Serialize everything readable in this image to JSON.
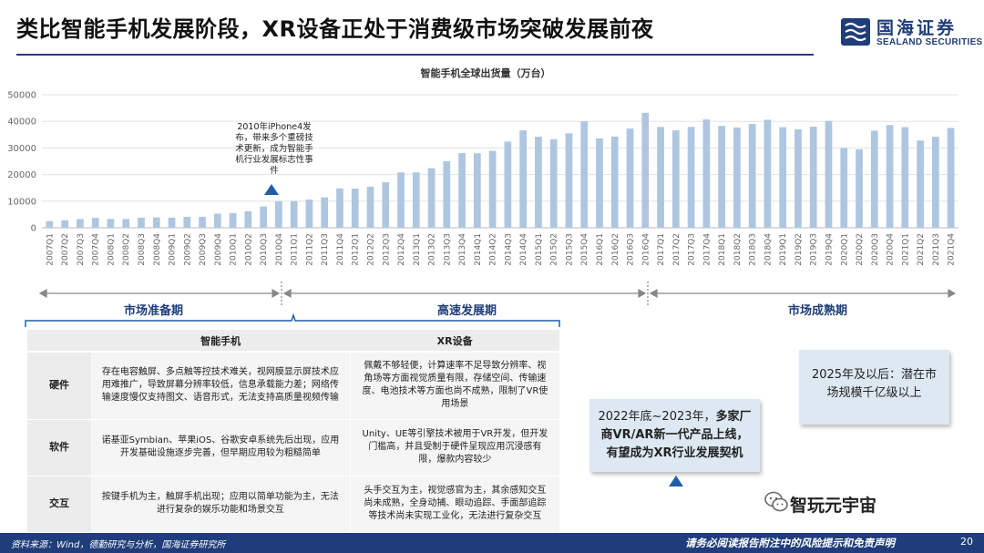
{
  "slide": {
    "title": "类比智能手机发展阶段，XR设备正处于消费级市场突破发展前夜",
    "page_number": "20"
  },
  "logo": {
    "cn": "国海证券",
    "en": "SEALAND SECURITIES",
    "brand_color": "#1f3d7a"
  },
  "chart_data": {
    "type": "bar",
    "title": "智能手机全球出货量（万台）",
    "xlabel": "",
    "ylabel": "",
    "ylim": [
      0,
      50000
    ],
    "yticks": [
      0,
      10000,
      20000,
      30000,
      40000,
      50000
    ],
    "grid": true,
    "bar_color": "#aec6e0",
    "categories": [
      "2007Q1",
      "2007Q2",
      "2007Q3",
      "2007Q4",
      "2008Q1",
      "2008Q2",
      "2008Q3",
      "2008Q4",
      "2009Q1",
      "2009Q2",
      "2009Q3",
      "2009Q4",
      "2010Q1",
      "2010Q2",
      "2010Q3",
      "2010Q4",
      "2011Q1",
      "2011Q2",
      "2011Q3",
      "2011Q4",
      "2012Q1",
      "2012Q2",
      "2012Q3",
      "2012Q4",
      "2013Q1",
      "2013Q2",
      "2013Q3",
      "2013Q4",
      "2014Q1",
      "2014Q2",
      "2014Q3",
      "2014Q4",
      "2015Q1",
      "2015Q2",
      "2015Q3",
      "2015Q4",
      "2016Q1",
      "2016Q2",
      "2016Q3",
      "2016Q4",
      "2017Q1",
      "2017Q2",
      "2017Q3",
      "2017Q4",
      "2018Q1",
      "2018Q2",
      "2018Q3",
      "2018Q4",
      "2019Q1",
      "2019Q2",
      "2019Q3",
      "2019Q4",
      "2020Q1",
      "2020Q2",
      "2020Q3",
      "2020Q4",
      "2021Q1",
      "2021Q2",
      "2021Q3",
      "2021Q4"
    ],
    "values": [
      2500,
      2800,
      3300,
      3700,
      3300,
      3300,
      3800,
      3900,
      3800,
      4100,
      4100,
      5300,
      5500,
      6200,
      8000,
      10000,
      10000,
      10600,
      11400,
      14800,
      14700,
      15400,
      17100,
      20800,
      20800,
      22400,
      25000,
      28100,
      28000,
      28900,
      32400,
      36600,
      34200,
      33300,
      35500,
      40000,
      33600,
      34300,
      37300,
      43200,
      37900,
      36600,
      37900,
      40700,
      38300,
      37700,
      39000,
      40600,
      37800,
      37000,
      38000,
      40200,
      30000,
      29500,
      36500,
      38600,
      37800,
      32800,
      34200,
      37500
    ]
  },
  "annotations": {
    "iphone4": "2010年iPhone4发布，带来多个重磅技术更新，成为智能手机行业发展标志性事件"
  },
  "phases": {
    "labels": [
      "市场准备期",
      "高速发展期",
      "市场成熟期"
    ],
    "color": "#1f3d7a"
  },
  "comparison_table": {
    "headers": [
      "",
      "智能手机",
      "XR设备"
    ],
    "rows": [
      {
        "label": "硬件",
        "smartphone": "存在电容触屏、多点触等控技术难关，视网膜显示屏技术应用难推广，导致屏幕分辨率较低，信息承载能力差；网络传输速度慢仅支持图文、语音形式，无法支持高质量视频传输",
        "xr": "佩戴不够轻便，计算速率不足导致分辨率、视角场等方面视觉质量有限，存储空间、传输速度、电池技术等方面也尚不成熟，限制了VR使用场景"
      },
      {
        "label": "软件",
        "smartphone": "诺基亚Symbian、苹果iOS、谷歌安卓系统先后出现，应用开发基础设施逐步完善，但早期应用较为粗糙简单",
        "xr": "Unity、UE等引擎技术被用于VR开发，但开发门槛高，并且受制于硬件呈现应用沉浸感有限，爆款内容较少"
      },
      {
        "label": "交互",
        "smartphone": "按键手机为主，触屏手机出现；应用以简单功能为主，无法进行复杂的娱乐功能和场景交互",
        "xr": "头手交互为主，视觉感官为主，其余感知交互尚未成熟，全身动捕、眼动追踪、手面部追踪等技术尚未实现工业化，无法进行复杂交互"
      }
    ]
  },
  "callouts": {
    "c2022_prefix": "2022年底~2023年，",
    "c2022_bold": "多家厂商VR/AR新一代产品上线，有望成为XR行业发展契机",
    "c2025": "2025年及以后：潜在市场规模千亿级以上",
    "bg_color": "#dde8f2"
  },
  "wechat": {
    "name": "智玩元宇宙",
    "icon": "wechat-icon"
  },
  "footer": {
    "source": "资料来源：Wind，德勤研究与分析，国海证券研究所",
    "disclaimer": "请务必阅读报告附注中的风险提示和免责声明"
  }
}
